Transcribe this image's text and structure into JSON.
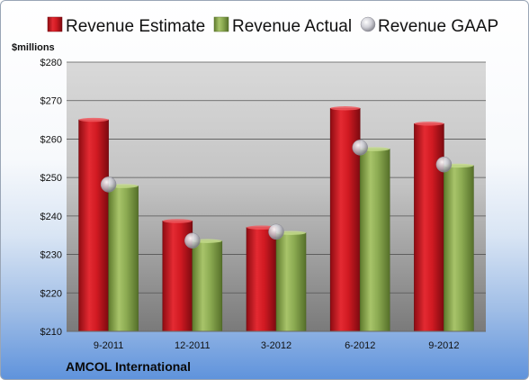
{
  "chart_data": {
    "type": "bar",
    "ylabel": "$millions",
    "ylim": [
      210,
      280
    ],
    "yticks": [
      "$210",
      "$220",
      "$230",
      "$240",
      "$250",
      "$260",
      "$270",
      "$280"
    ],
    "categories": [
      "9-2011",
      "12-2011",
      "3-2012",
      "6-2012",
      "9-2012"
    ],
    "series": [
      {
        "name": "Revenue Estimate",
        "kind": "bar",
        "color": "#d4141f",
        "values": [
          265.0,
          238.7,
          237.0,
          268.0,
          264.0
        ]
      },
      {
        "name": "Revenue Actual",
        "kind": "bar",
        "color": "#8cab52",
        "values": [
          247.8,
          233.5,
          235.6,
          257.4,
          253.1
        ]
      },
      {
        "name": "Revenue GAAP",
        "kind": "marker",
        "color": "#c8c8d0",
        "values": [
          248.2,
          233.6,
          235.9,
          257.8,
          253.4
        ]
      }
    ],
    "legend_position": "top",
    "grid": true,
    "plot_background": "gray-gradient"
  },
  "company": "AMCOL International"
}
